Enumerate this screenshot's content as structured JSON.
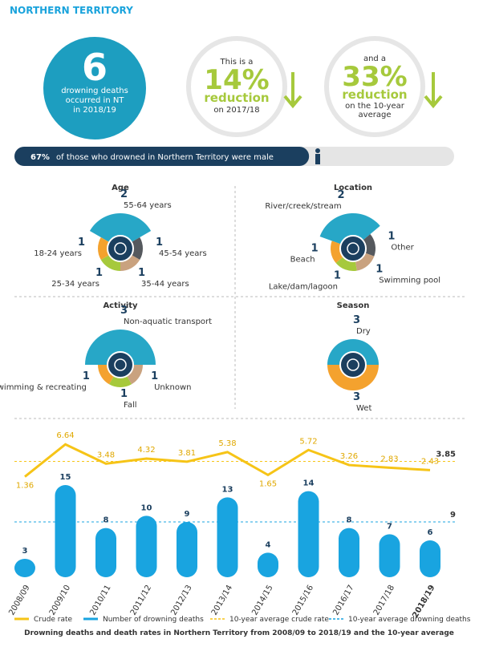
{
  "header": {
    "title": "NORTHERN TERRITORY"
  },
  "summary": {
    "deaths": 6,
    "lines": [
      "drowning deaths",
      "occurred in NT",
      "in 2018/19"
    ]
  },
  "reduction_year": {
    "intro": "This is a",
    "percent": "14%",
    "word": "reduction",
    "detail": [
      "on 2017/18"
    ]
  },
  "reduction_avg": {
    "intro": "and a",
    "percent": "33%",
    "word": "reduction",
    "detail": [
      "on the 10-year",
      "average"
    ]
  },
  "male": {
    "percent": {
      "value": 67,
      "label": "67%"
    },
    "text": "of those who drowned in Northern Territory were male"
  },
  "breakdowns": [
    {
      "title": "Age",
      "segments": [
        {
          "label": "55-64 years",
          "value": 2,
          "color": "#27a7c7"
        },
        {
          "label": "45-54 years",
          "value": 1,
          "color": "#55595e"
        },
        {
          "label": "35-44 years",
          "value": 1,
          "color": "#c9a27f"
        },
        {
          "label": "25-34 years",
          "value": 1,
          "color": "#a6c93c"
        },
        {
          "label": "18-24 years",
          "value": 1,
          "color": "#f4a22e"
        }
      ]
    },
    {
      "title": "Location",
      "segments": [
        {
          "label": "River/creek/stream",
          "value": 2,
          "color": "#27a7c7"
        },
        {
          "label": "Other",
          "value": 1,
          "color": "#55595e"
        },
        {
          "label": "Swimming pool",
          "value": 1,
          "color": "#c9a27f"
        },
        {
          "label": "Lake/dam/lagoon",
          "value": 1,
          "color": "#a6c93c"
        },
        {
          "label": "Beach",
          "value": 1,
          "color": "#f4a22e"
        }
      ]
    },
    {
      "title": "Activity",
      "segments": [
        {
          "label": "Non-aquatic transport",
          "value": 3,
          "color": "#27a7c7"
        },
        {
          "label": "Unknown",
          "value": 1,
          "color": "#c9a27f"
        },
        {
          "label": "Fall",
          "value": 1,
          "color": "#a6c93c"
        },
        {
          "label": "Swimming & recreating",
          "value": 1,
          "color": "#f4a22e"
        }
      ]
    },
    {
      "title": "Season",
      "segments": [
        {
          "label": "Dry",
          "value": 3,
          "color": "#27a7c7"
        },
        {
          "label": "Wet",
          "value": 3,
          "color": "#f4a22e"
        }
      ]
    }
  ],
  "chart_data": {
    "type": "bar",
    "caption": "Drowning deaths and death rates in Northern Territory from 2008/09 to 2018/19 and the 10-year average",
    "categories": [
      "2008/09",
      "2009/10",
      "2010/11",
      "2011/12",
      "2012/13",
      "2013/14",
      "2014/15",
      "2015/16",
      "2016/17",
      "2017/18",
      "2018/19"
    ],
    "series": [
      {
        "name": "Crude rate",
        "color": "#f6c417",
        "axis": "y2",
        "values": [
          1.36,
          6.64,
          3.48,
          4.32,
          3.81,
          5.38,
          1.65,
          5.72,
          3.26,
          2.83,
          2.43
        ]
      },
      {
        "name": "Number of drowning deaths",
        "color": "#19a4e0",
        "values": [
          3,
          15,
          8,
          10,
          9,
          13,
          4,
          14,
          8,
          7,
          6
        ]
      }
    ],
    "reference_lines": [
      {
        "name": "10-year average crude rate",
        "value": 3.85,
        "axis": "y2",
        "color": "#f6c417"
      },
      {
        "name": "10-year average drowning deaths",
        "value": 9,
        "color": "#19a4e0"
      }
    ],
    "ylim": [
      0,
      15
    ],
    "y2lim": [
      0,
      8.5
    ]
  }
}
